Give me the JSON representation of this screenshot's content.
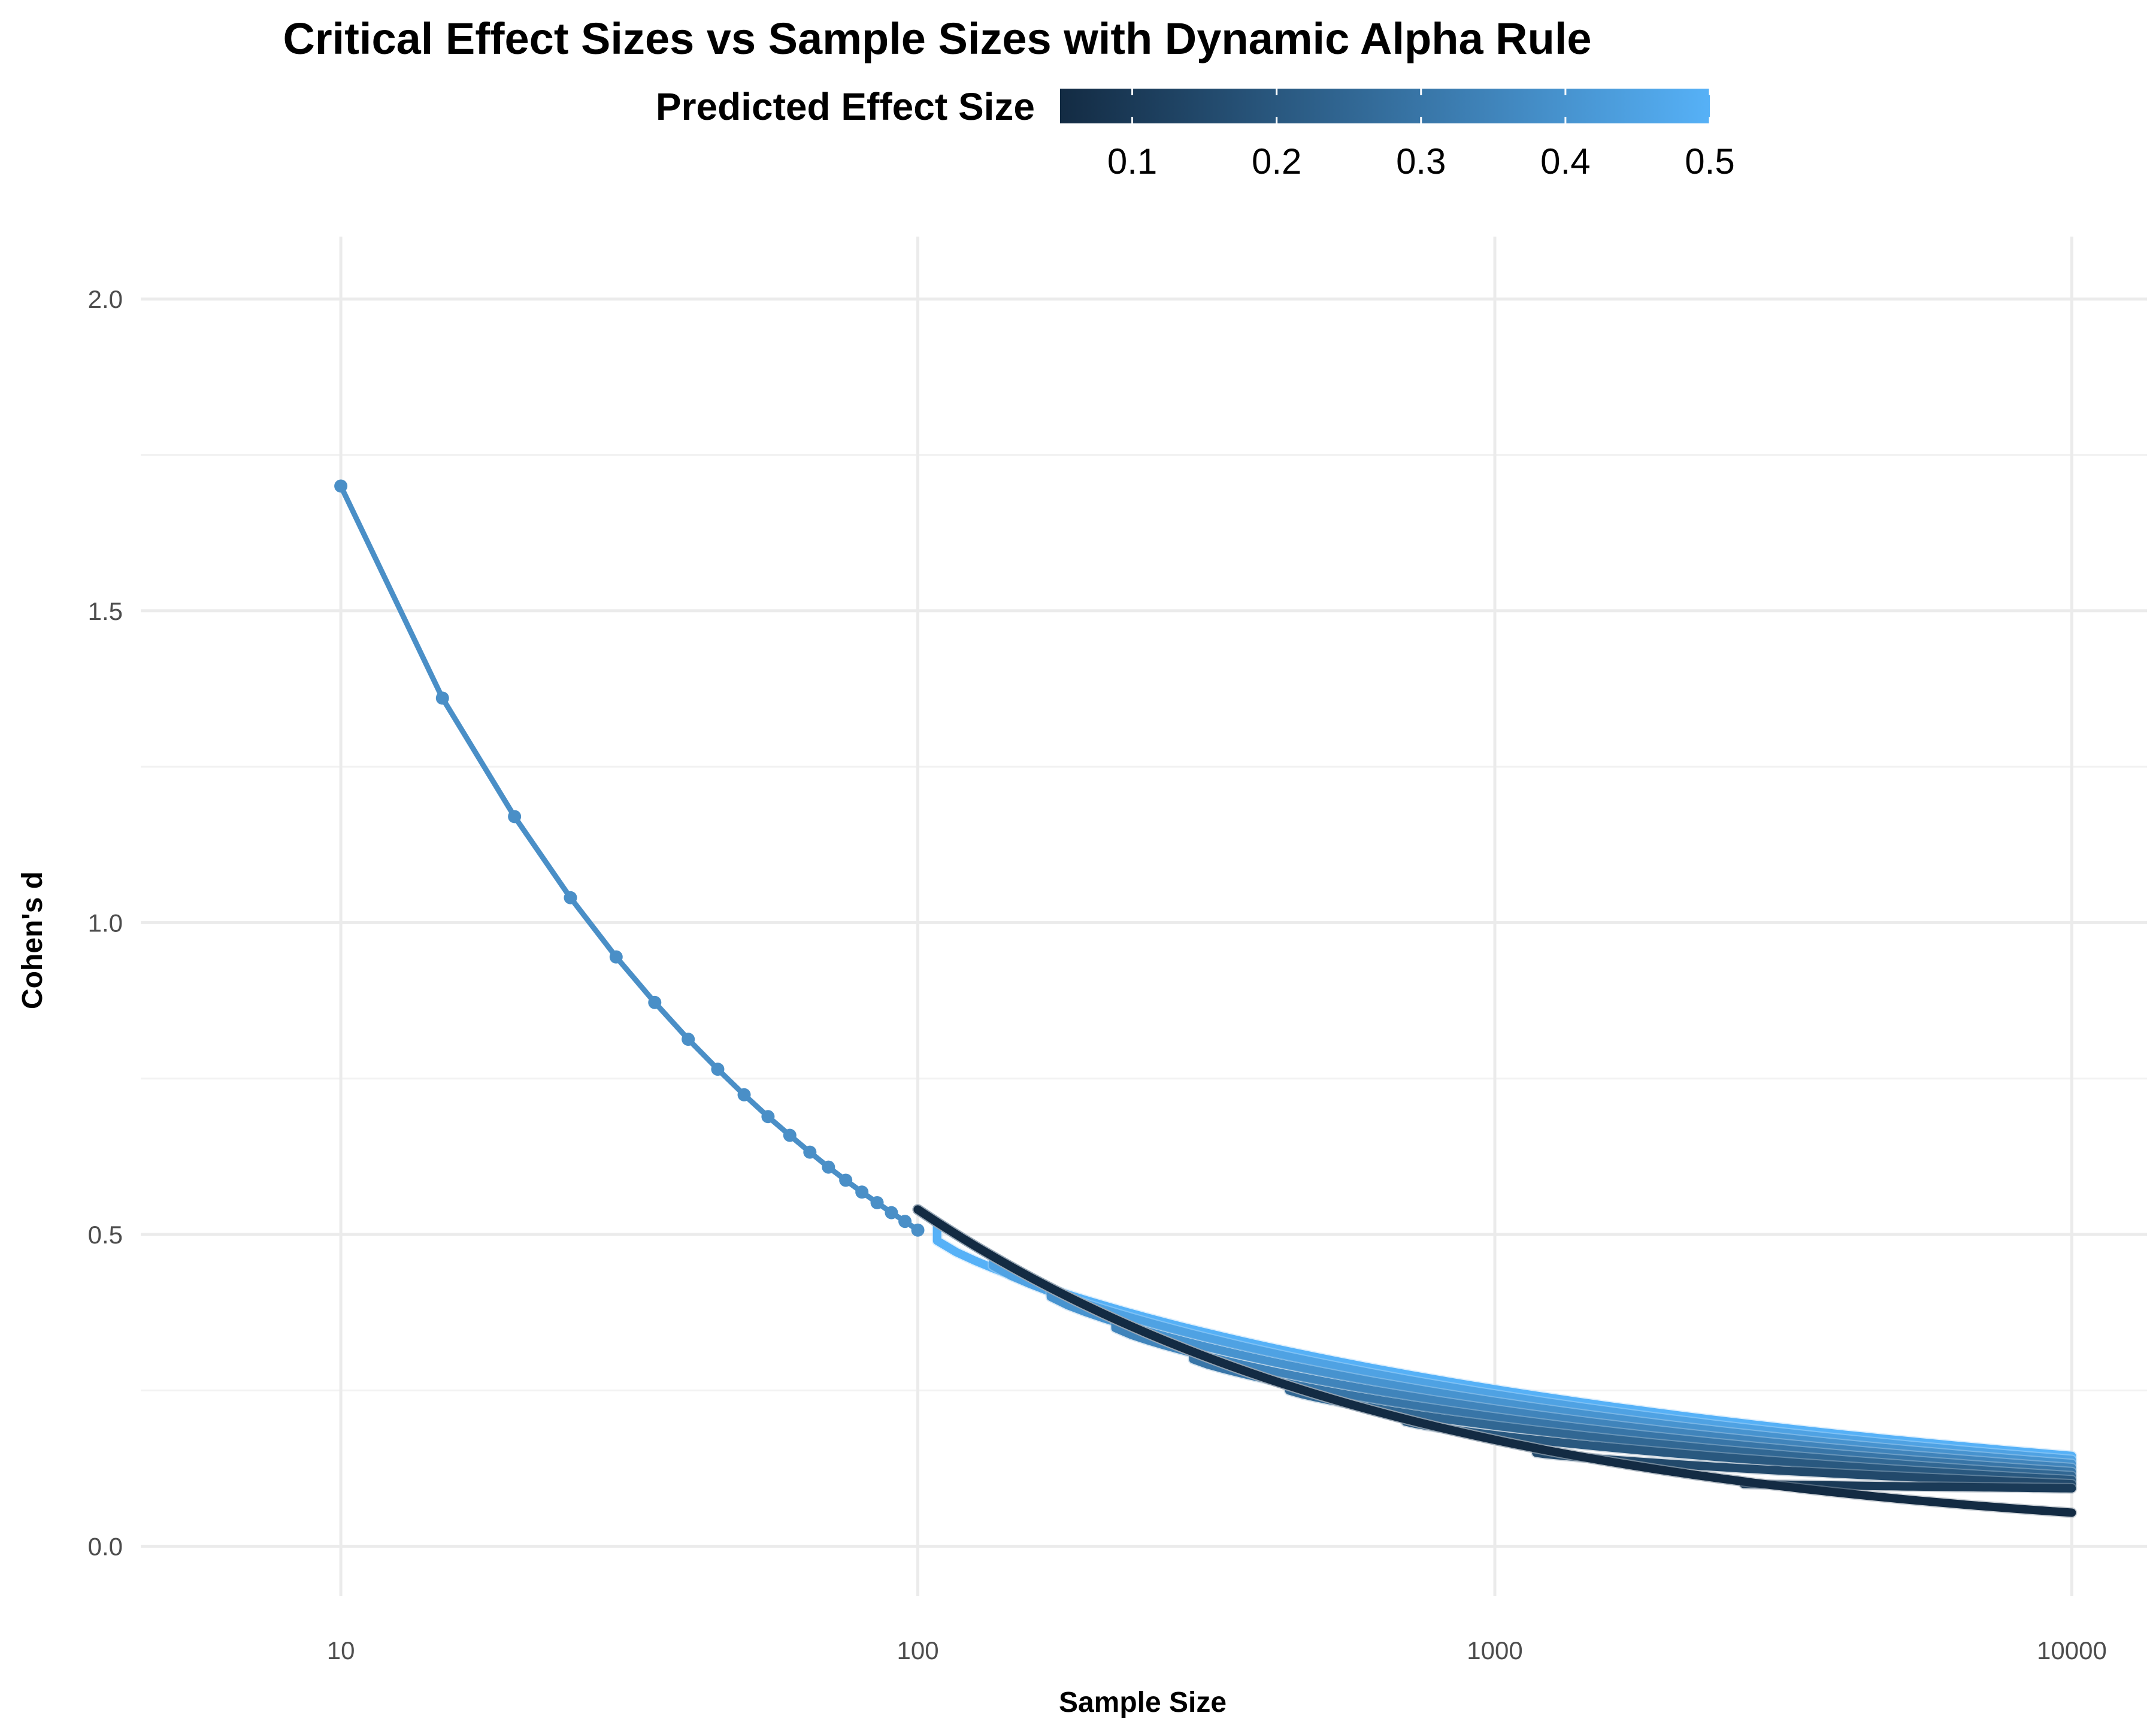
{
  "chart_data": {
    "type": "line",
    "title": "Critical Effect Sizes vs Sample Sizes with Dynamic Alpha Rule",
    "xlabel": "Sample Size",
    "ylabel": "Cohen's d",
    "x_scale": "log10",
    "xlim": [
      4.5,
      13500
    ],
    "ylim": [
      -0.08,
      2.1
    ],
    "x_ticks": [
      10,
      100,
      1000,
      10000
    ],
    "x_tick_labels": [
      "10",
      "100",
      "1000",
      "10000"
    ],
    "y_ticks": [
      0.0,
      0.5,
      1.0,
      1.5,
      2.0
    ],
    "y_tick_labels": [
      "0.0",
      "0.5",
      "1.0",
      "1.5",
      "2.0"
    ],
    "grid": true,
    "legend": {
      "title": "Predicted Effect Size",
      "placement": "top",
      "type": "colorbar",
      "ticks": [
        0.1,
        0.2,
        0.3,
        0.4,
        0.5
      ],
      "tick_labels": [
        "0.1",
        "0.2",
        "0.3",
        "0.4",
        "0.5"
      ],
      "range": [
        0.05,
        0.5
      ],
      "color_low": "#132B43",
      "color_high": "#56B1F7"
    },
    "shared_curve": {
      "color": "#4a8fc7",
      "points": [
        {
          "x": 10,
          "y": 1.7
        },
        {
          "x": 15,
          "y": 1.36
        },
        {
          "x": 20,
          "y": 1.17
        },
        {
          "x": 25,
          "y": 1.04
        },
        {
          "x": 30,
          "y": 0.945
        },
        {
          "x": 35,
          "y": 0.872
        },
        {
          "x": 40,
          "y": 0.813
        },
        {
          "x": 45,
          "y": 0.765
        },
        {
          "x": 50,
          "y": 0.724
        },
        {
          "x": 55,
          "y": 0.689
        },
        {
          "x": 60,
          "y": 0.659
        },
        {
          "x": 65,
          "y": 0.632
        },
        {
          "x": 70,
          "y": 0.608
        },
        {
          "x": 75,
          "y": 0.587
        },
        {
          "x": 80,
          "y": 0.568
        },
        {
          "x": 85,
          "y": 0.551
        },
        {
          "x": 90,
          "y": 0.535
        },
        {
          "x": 95,
          "y": 0.521
        },
        {
          "x": 100,
          "y": 0.507
        }
      ]
    },
    "series": [
      {
        "effect": 0.05,
        "plateau": 0.05,
        "break_n": null
      },
      {
        "effect": 0.1,
        "plateau": 0.1,
        "break_n": 2700
      },
      {
        "effect": 0.15,
        "plateau": 0.15,
        "break_n": 1180
      },
      {
        "effect": 0.2,
        "plateau": 0.2,
        "break_n": 700
      },
      {
        "effect": 0.25,
        "plateau": 0.25,
        "break_n": 440
      },
      {
        "effect": 0.3,
        "plateau": 0.3,
        "break_n": 300
      },
      {
        "effect": 0.35,
        "plateau": 0.35,
        "break_n": 220
      },
      {
        "effect": 0.4,
        "plateau": 0.4,
        "break_n": 170
      },
      {
        "effect": 0.45,
        "plateau": 0.45,
        "break_n": 135
      },
      {
        "effect": 0.5,
        "plateau": 0.49,
        "break_n": 108
      }
    ]
  }
}
